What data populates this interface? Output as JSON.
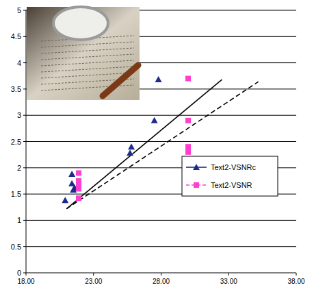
{
  "chart_data": {
    "type": "scatter",
    "xlim": [
      18,
      38
    ],
    "xticks": [
      {
        "value": 18,
        "label": "18.00"
      },
      {
        "value": 23,
        "label": "23.00"
      },
      {
        "value": 28,
        "label": "28.00"
      },
      {
        "value": 33,
        "label": "33.00"
      },
      {
        "value": 38,
        "label": "38.00"
      }
    ],
    "ylim": [
      0,
      5
    ],
    "yticks": [
      0,
      0.5,
      1,
      1.5,
      2,
      2.5,
      3,
      3.5,
      4,
      4.5,
      5
    ],
    "grid": true,
    "legend": "right",
    "series": [
      {
        "name": "Text2-VSNRc",
        "color": "#1f2a8a",
        "marker": "triangle",
        "line_style": "solid",
        "x": [
          20.9,
          21.4,
          21.4,
          21.5,
          21.6,
          25.7,
          25.8,
          27.5,
          27.8
        ],
        "values": [
          1.38,
          1.88,
          1.7,
          1.58,
          1.62,
          2.28,
          2.4,
          2.9,
          3.68
        ],
        "trend_x": [
          21.0,
          32.5
        ],
        "trend_y": [
          1.22,
          3.68
        ]
      },
      {
        "name": "Text2-VSNR",
        "color": "#ff3fcf",
        "marker": "square",
        "line_style": "dashed",
        "x": [
          21.9,
          21.9,
          21.9,
          21.9,
          21.9,
          30.0,
          30.0,
          30.0,
          30.0
        ],
        "values": [
          1.9,
          1.75,
          1.67,
          1.6,
          1.42,
          3.7,
          2.9,
          2.4,
          2.3
        ],
        "trend_x": [
          21.0,
          35.2
        ],
        "trend_y": [
          1.22,
          3.64
        ]
      }
    ]
  }
}
